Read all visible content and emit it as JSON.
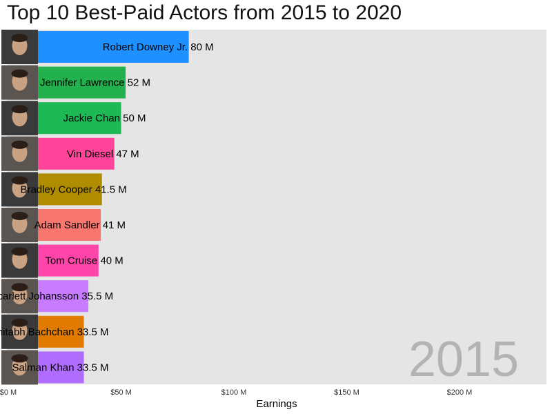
{
  "chart_data": {
    "type": "bar",
    "orientation": "horizontal",
    "title": "Top 10 Best-Paid Actors from 2015 to 2020",
    "xlabel": "Earnings",
    "ylabel": "",
    "xlim": [
      0,
      240
    ],
    "x_ticks": [
      0,
      50,
      100,
      150,
      200
    ],
    "x_tick_labels": [
      "$0 M",
      "$50 M",
      "$100 M",
      "$150 M",
      "$200 M"
    ],
    "grid": false,
    "background": "#e5e5e5",
    "year": "2015",
    "value_suffix": " M",
    "categories": [
      "Robert Downey Jr.",
      "Jennifer Lawrence",
      "Jackie Chan",
      "Vin Diesel",
      "Bradley Cooper",
      "Adam Sandler",
      "Tom Cruise",
      "Scarlett Johansson",
      "Amitabh Bachchan",
      "Salman Khan"
    ],
    "values": [
      80,
      52,
      50,
      47,
      41.5,
      41,
      40,
      35.5,
      33.5,
      33.5
    ],
    "colors": [
      "#1e90ff",
      "#22b14c",
      "#1db954",
      "#ff4499",
      "#b08d00",
      "#f8766d",
      "#ff44aa",
      "#c77cff",
      "#e07b00",
      "#b06cff"
    ]
  }
}
